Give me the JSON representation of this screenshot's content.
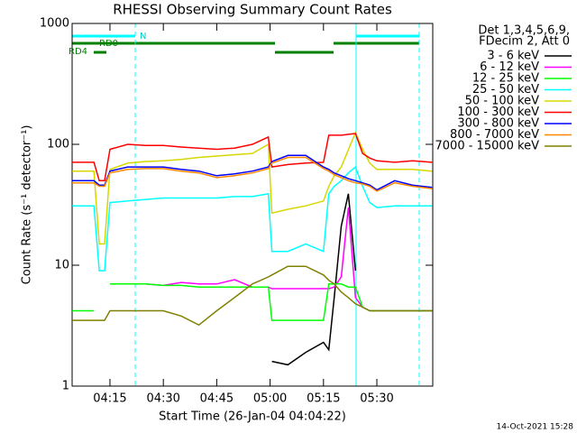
{
  "chart_data": {
    "type": "line",
    "title": "RHESSI Observing Summary Count Rates",
    "xlabel": "Start Time (26-Jan-04 04:04:22)",
    "ylabel": "Count Rate (s⁻¹ detector⁻¹)",
    "legend_header": [
      "Det 1,3,4,5,6,9,",
      "FDecim 2, Att 0"
    ],
    "footer": "14-Oct-2021 15:28",
    "annotations": [
      "N",
      "RD0",
      "RD4"
    ],
    "ylog": true,
    "ylim": [
      1,
      1000
    ],
    "yticks": [
      1,
      10,
      100,
      1000
    ],
    "xlim": [
      4.37,
      105.7
    ],
    "xticks": [
      {
        "value": 15,
        "label": "04:15"
      },
      {
        "value": 30,
        "label": "04:30"
      },
      {
        "value": 45,
        "label": "04:45"
      },
      {
        "value": 60,
        "label": "05:00"
      },
      {
        "value": 75,
        "label": "05:15"
      },
      {
        "value": 90,
        "label": "05:30"
      }
    ],
    "x": [
      4.4,
      8,
      10.5,
      12,
      13.5,
      15,
      20,
      25,
      30,
      35,
      40,
      45,
      50,
      55,
      59.5,
      60.5,
      65,
      70,
      75,
      76.5,
      78,
      80,
      82,
      84,
      86,
      88,
      90,
      95,
      100,
      105.5
    ],
    "series": [
      {
        "name": "3 - 6 keV",
        "color": "#000000",
        "values": [
          null,
          null,
          null,
          null,
          null,
          null,
          null,
          null,
          null,
          null,
          null,
          null,
          null,
          null,
          null,
          1.6,
          1.5,
          1.9,
          2.3,
          2,
          5.4,
          21,
          39,
          9,
          null,
          null,
          null,
          null,
          null,
          null
        ]
      },
      {
        "name": "6 - 12 keV",
        "color": "#ff00ff",
        "values": [
          null,
          null,
          null,
          null,
          null,
          7,
          7,
          7,
          6.8,
          7.2,
          7,
          7,
          7.6,
          6.6,
          6.6,
          6.4,
          6.4,
          6.4,
          6.4,
          6.4,
          6.6,
          8,
          30,
          5.4,
          4.5,
          4.2,
          4.2,
          4.2,
          4.2,
          4.2
        ]
      },
      {
        "name": "12 - 25 keV",
        "color": "#00ff00",
        "values": [
          4.2,
          4.2,
          4.2,
          null,
          null,
          7,
          7,
          7,
          6.8,
          6.8,
          6.6,
          6.6,
          6.6,
          6.6,
          6.6,
          3.5,
          3.5,
          3.5,
          3.5,
          7,
          7,
          7,
          6.6,
          6.6,
          4.5,
          4.2,
          4.2,
          4.2,
          4.2,
          4.2
        ]
      },
      {
        "name": "25 - 50 keV",
        "color": "#00ffff",
        "values": [
          31,
          31,
          31,
          9,
          9,
          33,
          34,
          35,
          36,
          36,
          36,
          36,
          37,
          37,
          39,
          13,
          13,
          15,
          13,
          39,
          45,
          50,
          58,
          65,
          45,
          33,
          30,
          31,
          31,
          31
        ]
      },
      {
        "name": "50 - 100 keV",
        "color": "#d7d700",
        "values": [
          60,
          60,
          60,
          15,
          15,
          62,
          70,
          72,
          73,
          75,
          78,
          80,
          82,
          84,
          100,
          27,
          29,
          31,
          34,
          45,
          55,
          65,
          90,
          125,
          91,
          70,
          62,
          62,
          62,
          60
        ]
      },
      {
        "name": "100 - 300 keV",
        "color": "#ff0000",
        "values": [
          71,
          71,
          71,
          50,
          50,
          91,
          100,
          98,
          98,
          95,
          93,
          91,
          93,
          100,
          115,
          65,
          68,
          70,
          71,
          119,
          119,
          119,
          121,
          123,
          84,
          77,
          73,
          71,
          73,
          71
        ]
      },
      {
        "name": "300 - 800 keV",
        "color": "#0000ff",
        "values": [
          50,
          50,
          50,
          46,
          46,
          60,
          65,
          65,
          65,
          62,
          60,
          55,
          57,
          60,
          65,
          72,
          81,
          81,
          65,
          62,
          58,
          55,
          52,
          50,
          48,
          46,
          42,
          50,
          46,
          44
        ]
      },
      {
        "name": "800 - 7000 keV",
        "color": "#ff8800",
        "values": [
          48,
          48,
          48,
          45,
          45,
          58,
          62,
          63,
          63,
          60,
          58,
          53,
          55,
          58,
          63,
          70,
          78,
          78,
          63,
          60,
          56,
          53,
          50,
          48,
          47,
          45,
          41,
          48,
          45,
          43
        ]
      },
      {
        "name": "7000 - 15000 keV",
        "color": "#808000",
        "values": [
          3.5,
          3.5,
          3.5,
          3.5,
          3.5,
          4.2,
          4.2,
          4.2,
          4.2,
          3.8,
          3.2,
          4.2,
          5.4,
          7,
          8,
          8.3,
          9.8,
          9.8,
          8.3,
          7.5,
          7,
          6,
          5.4,
          4.8,
          4.5,
          4.2,
          4.2,
          4.2,
          4.2,
          4.2
        ]
      }
    ]
  }
}
